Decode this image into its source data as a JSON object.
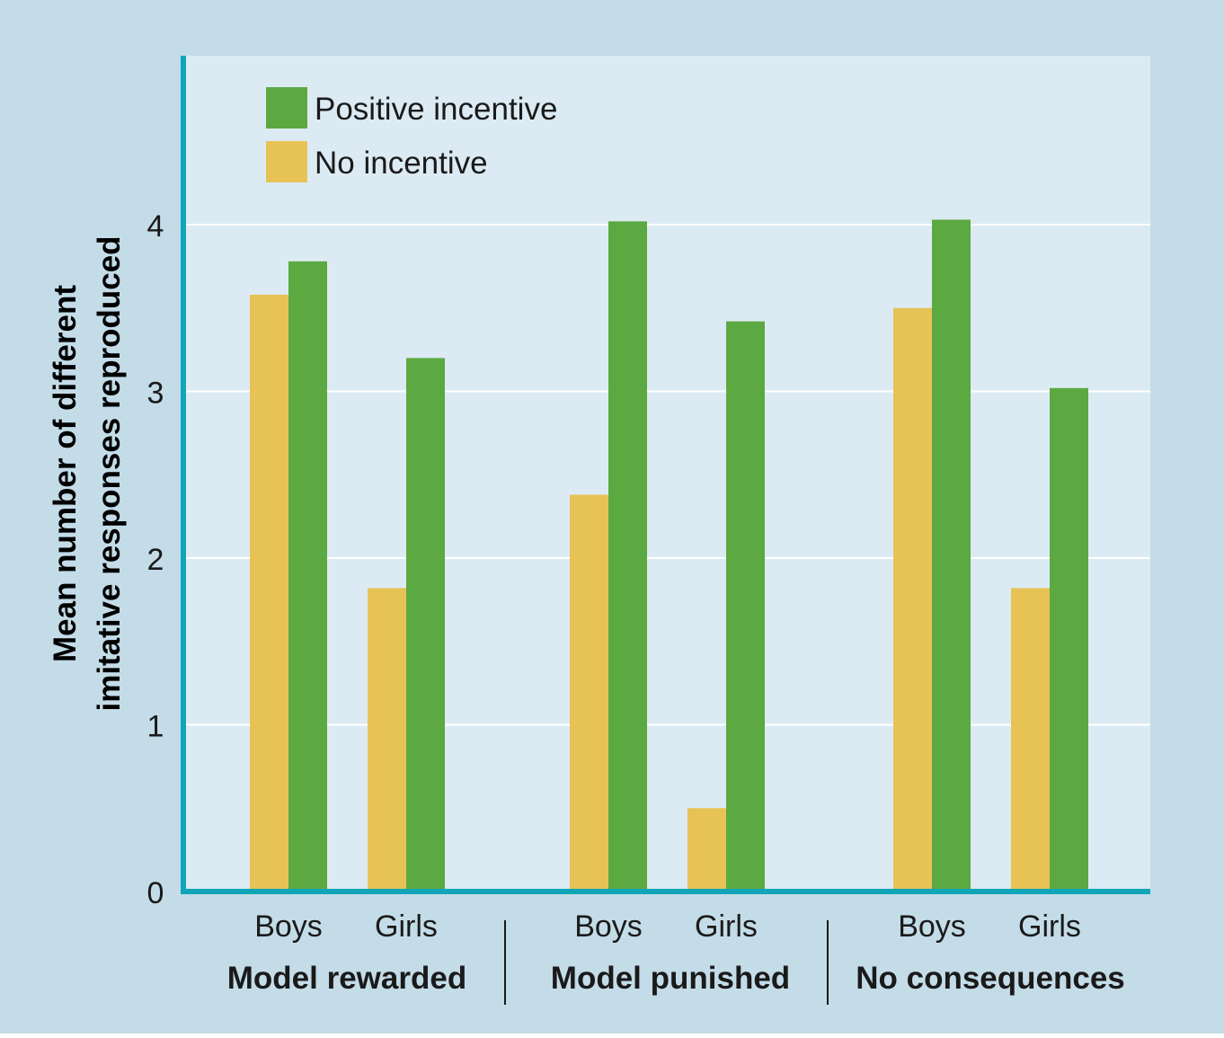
{
  "colors": {
    "outer_background": "#c3dce8",
    "plot_background": "#dcebf3",
    "axis": "#11a5b8",
    "gridline": "#ffffff",
    "text": "#1a1a1a",
    "positive": "#5ca941",
    "none": "#e7c356"
  },
  "chart_data": {
    "type": "bar",
    "title": "",
    "xlabel": "",
    "ylabel_lines": [
      "Mean number of different",
      "imitative responses reproduced"
    ],
    "ylim": [
      0,
      5
    ],
    "yticks": [
      0,
      1,
      2,
      3,
      4
    ],
    "grid": true,
    "legend_position": "top-left",
    "groups": [
      {
        "label": "Model rewarded",
        "categories": [
          "Boys",
          "Girls"
        ]
      },
      {
        "label": "Model punished",
        "categories": [
          "Boys",
          "Girls"
        ]
      },
      {
        "label": "No consequences",
        "categories": [
          "Boys",
          "Girls"
        ]
      }
    ],
    "categories": [
      "Boys",
      "Girls",
      "Boys",
      "Girls",
      "Boys",
      "Girls"
    ],
    "series": [
      {
        "name": "No incentive",
        "values": [
          3.58,
          1.82,
          2.38,
          0.5,
          3.5,
          1.82
        ]
      },
      {
        "name": "Positive incentive",
        "values": [
          3.78,
          3.2,
          4.02,
          3.42,
          4.03,
          3.02
        ]
      }
    ],
    "legend_order": [
      "Positive incentive",
      "No incentive"
    ]
  }
}
